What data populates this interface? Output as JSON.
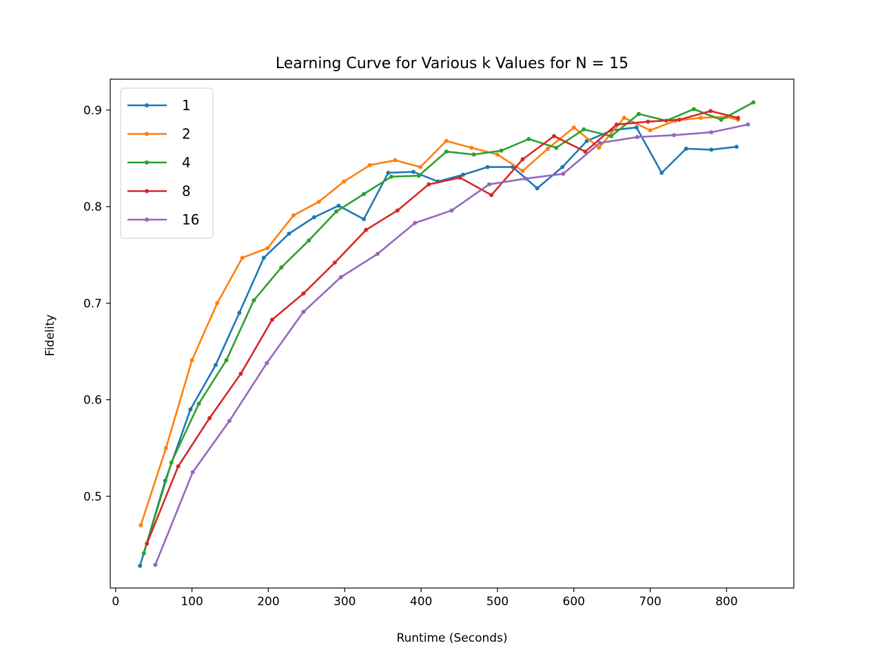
{
  "chart_data": {
    "type": "line",
    "title": "Learning Curve for Various k Values for N = 15",
    "xlabel": "Runtime (Seconds)",
    "ylabel": "Fidelity",
    "xlim": [
      -7,
      888
    ],
    "ylim": [
      0.405,
      0.932
    ],
    "xticks": [
      0,
      100,
      200,
      300,
      400,
      500,
      600,
      700,
      800
    ],
    "xtick_labels": [
      "0",
      "100",
      "200",
      "300",
      "400",
      "500",
      "600",
      "700",
      "800"
    ],
    "yticks": [
      0.5,
      0.6,
      0.7,
      0.8,
      0.9
    ],
    "ytick_labels": [
      "0.5",
      "0.6",
      "0.7",
      "0.8",
      "0.9"
    ],
    "grid": false,
    "legend_position": "top-left",
    "series": [
      {
        "name": "1",
        "color": "#1f77b4",
        "points": [
          [
            32,
            0.428
          ],
          [
            65,
            0.516
          ],
          [
            98,
            0.59
          ],
          [
            131,
            0.636
          ],
          [
            162,
            0.69
          ],
          [
            194,
            0.747
          ],
          [
            227,
            0.772
          ],
          [
            260,
            0.789
          ],
          [
            292,
            0.801
          ],
          [
            325,
            0.787
          ],
          [
            357,
            0.835
          ],
          [
            390,
            0.836
          ],
          [
            422,
            0.826
          ],
          [
            455,
            0.833
          ],
          [
            487,
            0.841
          ],
          [
            520,
            0.841
          ],
          [
            552,
            0.819
          ],
          [
            585,
            0.841
          ],
          [
            617,
            0.868
          ],
          [
            650,
            0.879
          ],
          [
            682,
            0.882
          ],
          [
            715,
            0.835
          ],
          [
            747,
            0.86
          ],
          [
            780,
            0.859
          ],
          [
            813,
            0.862
          ]
        ]
      },
      {
        "name": "2",
        "color": "#ff7f0e",
        "points": [
          [
            33,
            0.47
          ],
          [
            66,
            0.55
          ],
          [
            100,
            0.641
          ],
          [
            133,
            0.7
          ],
          [
            166,
            0.747
          ],
          [
            199,
            0.757
          ],
          [
            233,
            0.791
          ],
          [
            266,
            0.805
          ],
          [
            299,
            0.826
          ],
          [
            333,
            0.843
          ],
          [
            366,
            0.848
          ],
          [
            399,
            0.841
          ],
          [
            433,
            0.868
          ],
          [
            466,
            0.861
          ],
          [
            500,
            0.854
          ],
          [
            533,
            0.837
          ],
          [
            566,
            0.86
          ],
          [
            600,
            0.882
          ],
          [
            633,
            0.861
          ],
          [
            666,
            0.892
          ],
          [
            700,
            0.879
          ],
          [
            733,
            0.889
          ],
          [
            766,
            0.892
          ],
          [
            800,
            0.893
          ],
          [
            815,
            0.89
          ]
        ]
      },
      {
        "name": "4",
        "color": "#2ca02c",
        "points": [
          [
            37,
            0.441
          ],
          [
            73,
            0.535
          ],
          [
            109,
            0.596
          ],
          [
            145,
            0.641
          ],
          [
            181,
            0.703
          ],
          [
            217,
            0.737
          ],
          [
            253,
            0.765
          ],
          [
            289,
            0.795
          ],
          [
            325,
            0.813
          ],
          [
            361,
            0.831
          ],
          [
            397,
            0.832
          ],
          [
            433,
            0.857
          ],
          [
            469,
            0.854
          ],
          [
            505,
            0.858
          ],
          [
            541,
            0.87
          ],
          [
            577,
            0.861
          ],
          [
            613,
            0.88
          ],
          [
            649,
            0.873
          ],
          [
            685,
            0.896
          ],
          [
            721,
            0.889
          ],
          [
            757,
            0.901
          ],
          [
            793,
            0.89
          ],
          [
            835,
            0.908
          ]
        ]
      },
      {
        "name": "8",
        "color": "#d62728",
        "points": [
          [
            41,
            0.451
          ],
          [
            82,
            0.531
          ],
          [
            123,
            0.581
          ],
          [
            164,
            0.627
          ],
          [
            205,
            0.683
          ],
          [
            246,
            0.71
          ],
          [
            287,
            0.742
          ],
          [
            328,
            0.776
          ],
          [
            369,
            0.796
          ],
          [
            410,
            0.823
          ],
          [
            451,
            0.83
          ],
          [
            492,
            0.812
          ],
          [
            533,
            0.849
          ],
          [
            574,
            0.873
          ],
          [
            615,
            0.857
          ],
          [
            656,
            0.885
          ],
          [
            697,
            0.888
          ],
          [
            738,
            0.89
          ],
          [
            779,
            0.899
          ],
          [
            815,
            0.892
          ]
        ]
      },
      {
        "name": "16",
        "color": "#9467bd",
        "points": [
          [
            52,
            0.429
          ],
          [
            101,
            0.525
          ],
          [
            149,
            0.578
          ],
          [
            198,
            0.638
          ],
          [
            246,
            0.691
          ],
          [
            295,
            0.727
          ],
          [
            343,
            0.751
          ],
          [
            392,
            0.783
          ],
          [
            440,
            0.796
          ],
          [
            489,
            0.823
          ],
          [
            537,
            0.829
          ],
          [
            586,
            0.834
          ],
          [
            634,
            0.866
          ],
          [
            683,
            0.872
          ],
          [
            731,
            0.874
          ],
          [
            780,
            0.877
          ],
          [
            828,
            0.885
          ]
        ]
      }
    ]
  }
}
